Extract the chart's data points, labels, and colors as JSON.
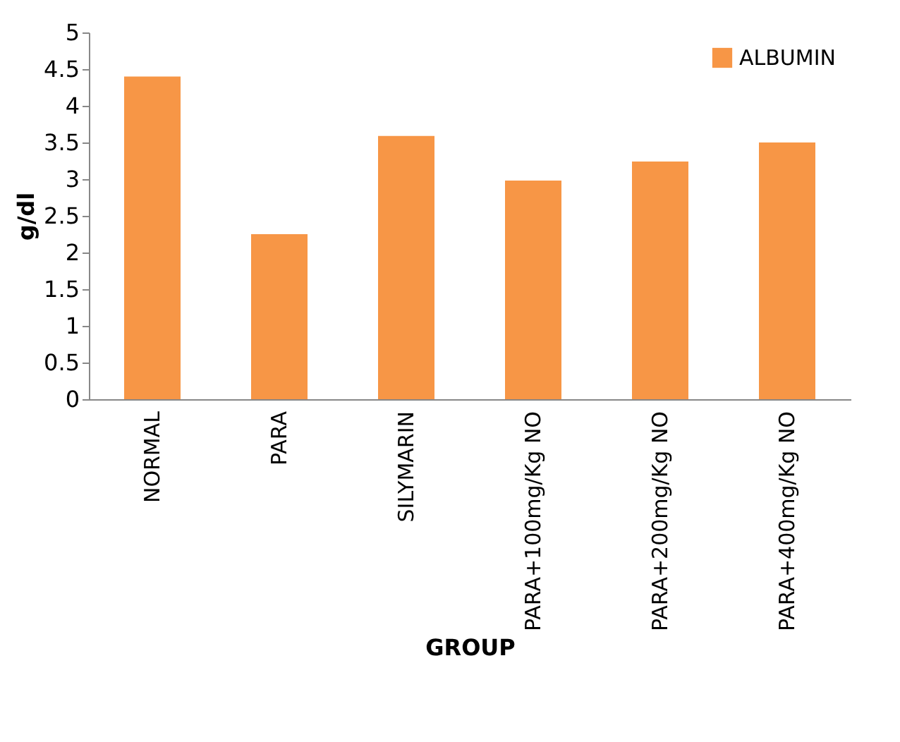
{
  "chart_data": {
    "type": "bar",
    "xlabel": "GROUP",
    "ylabel": "g/dl",
    "categories": [
      "NORMAL",
      "PARA",
      "SILYMARIN",
      "PARA+100mg/Kg NO",
      "PARA+200mg/Kg NO",
      "PARA+400mg/Kg NO"
    ],
    "series": [
      {
        "name": "ALBUMIN",
        "color": "#f79646",
        "values": [
          4.4,
          2.25,
          3.59,
          2.98,
          3.24,
          3.5
        ]
      }
    ],
    "ylim": [
      0,
      5
    ],
    "yticks": [
      0,
      0.5,
      1,
      1.5,
      2,
      2.5,
      3,
      3.5,
      4,
      4.5,
      5
    ],
    "grid": false,
    "legend": "top right"
  }
}
